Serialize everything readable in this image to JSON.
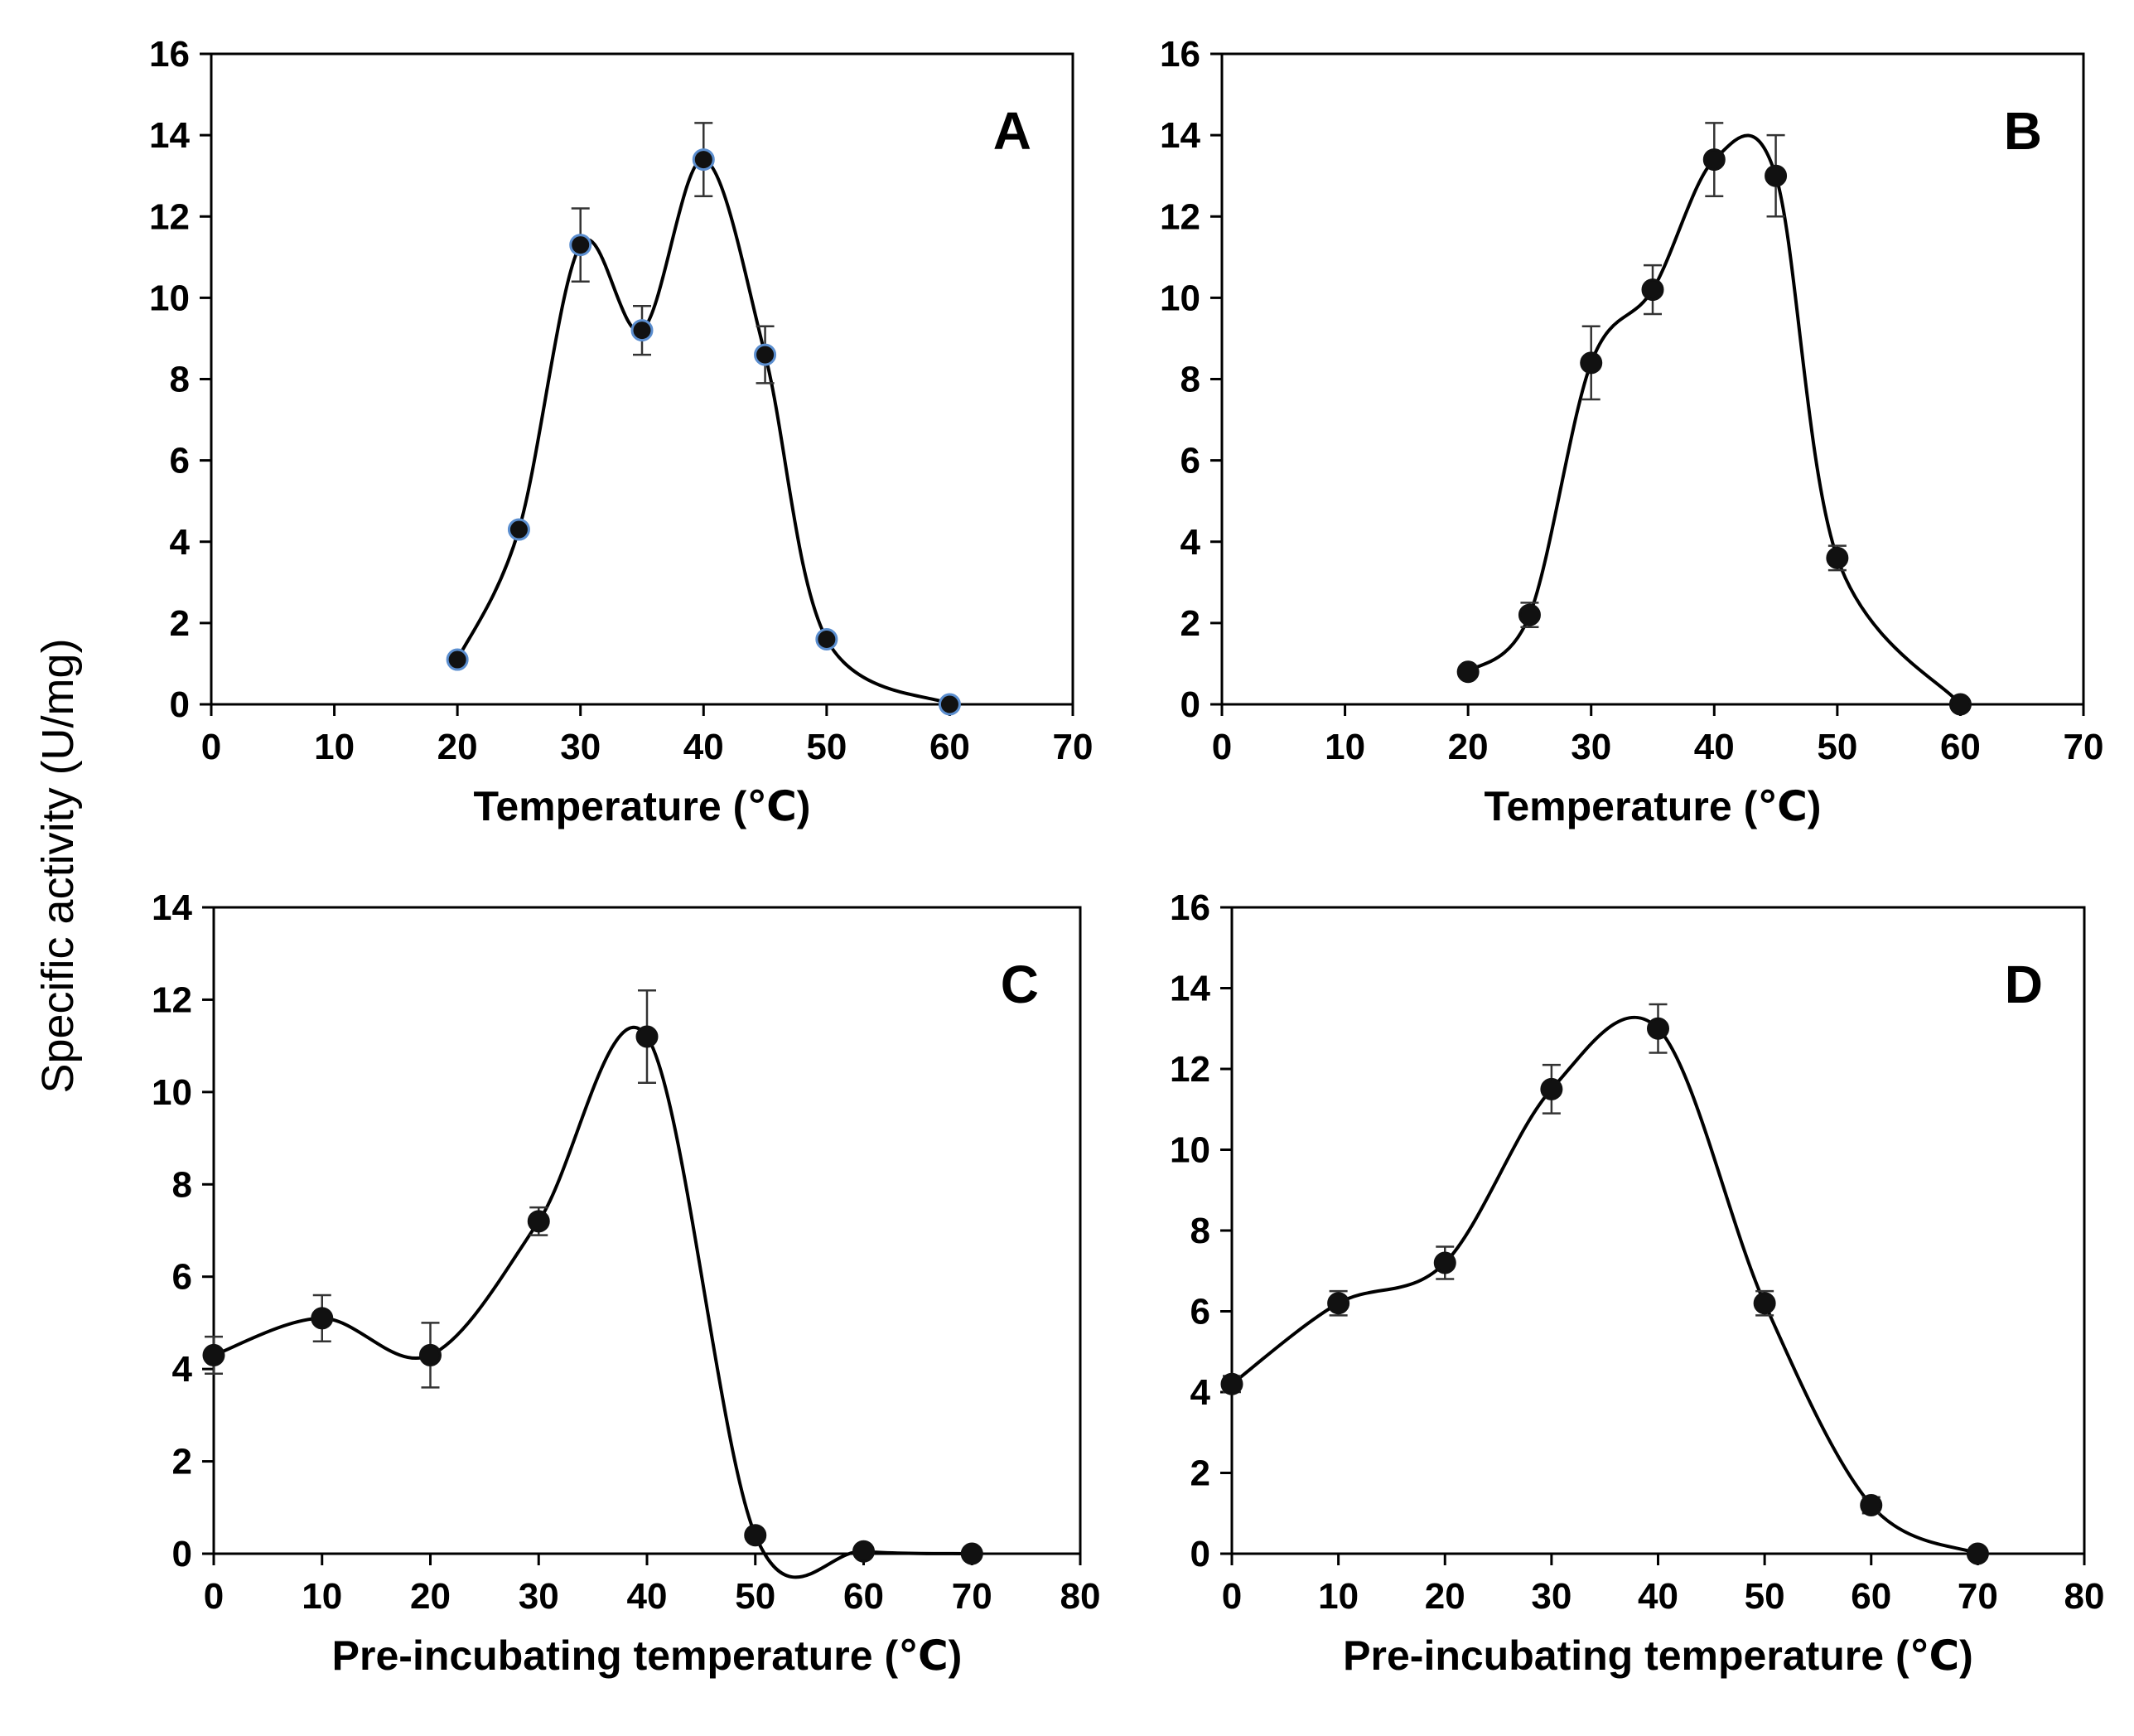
{
  "figure": {
    "shared_ylabel": "Specific activity (U/mg)"
  },
  "chart_data": [
    {
      "panel": "A",
      "type": "line",
      "xlabel": "Temperature (℃)",
      "ylabel": "Specific activity (U/mg)",
      "xlim": [
        0,
        70
      ],
      "ylim": [
        0,
        16
      ],
      "xticks": [
        0,
        10,
        20,
        30,
        40,
        50,
        60,
        70
      ],
      "yticks": [
        0,
        2,
        4,
        6,
        8,
        10,
        12,
        14,
        16
      ],
      "marker_fill": "#111111",
      "marker_edge": "#5b8ecf",
      "x": [
        20,
        25,
        30,
        35,
        40,
        45,
        50,
        60
      ],
      "y": [
        1.1,
        4.3,
        11.3,
        9.2,
        13.4,
        8.6,
        1.6,
        0.0
      ],
      "error": [
        0,
        0,
        0.9,
        0.6,
        0.9,
        0.7,
        0,
        0
      ]
    },
    {
      "panel": "B",
      "type": "line",
      "xlabel": "Temperature (℃)",
      "ylabel": "Specific activity (U/mg)",
      "xlim": [
        0,
        70
      ],
      "ylim": [
        0,
        16
      ],
      "xticks": [
        0,
        10,
        20,
        30,
        40,
        50,
        60,
        70
      ],
      "yticks": [
        0,
        2,
        4,
        6,
        8,
        10,
        12,
        14,
        16
      ],
      "marker_fill": "#111111",
      "marker_edge": "#111111",
      "x": [
        20,
        25,
        30,
        35,
        40,
        45,
        50,
        60
      ],
      "y": [
        0.8,
        2.2,
        8.4,
        10.2,
        13.4,
        13.0,
        3.6,
        0.0
      ],
      "error": [
        0,
        0.3,
        0.9,
        0.6,
        0.9,
        1.0,
        0.3,
        0
      ]
    },
    {
      "panel": "C",
      "type": "line",
      "xlabel": "Pre-incubating temperature (℃)",
      "ylabel": "Specific activity (U/mg)",
      "xlim": [
        0,
        80
      ],
      "ylim": [
        0,
        14
      ],
      "xticks": [
        0,
        10,
        20,
        30,
        40,
        50,
        60,
        70,
        80
      ],
      "yticks": [
        0,
        2,
        4,
        6,
        8,
        10,
        12,
        14
      ],
      "marker_fill": "#111111",
      "marker_edge": "#111111",
      "x": [
        0,
        10,
        20,
        30,
        40,
        50,
        60,
        70
      ],
      "y": [
        4.3,
        5.1,
        4.3,
        7.2,
        11.2,
        0.4,
        0.05,
        0.0
      ],
      "error": [
        0.4,
        0.5,
        0.7,
        0.3,
        1.0,
        0,
        0,
        0
      ]
    },
    {
      "panel": "D",
      "type": "line",
      "xlabel": "Pre-incubating temperature (℃)",
      "ylabel": "Specific activity (U/mg)",
      "xlim": [
        0,
        80
      ],
      "ylim": [
        0,
        16
      ],
      "xticks": [
        0,
        10,
        20,
        30,
        40,
        50,
        60,
        70,
        80
      ],
      "yticks": [
        0,
        2,
        4,
        6,
        8,
        10,
        12,
        14,
        16
      ],
      "marker_fill": "#111111",
      "marker_edge": "#111111",
      "x": [
        0,
        10,
        20,
        30,
        40,
        50,
        60,
        70
      ],
      "y": [
        4.2,
        6.2,
        7.2,
        11.5,
        13.0,
        6.2,
        1.2,
        0.0
      ],
      "error": [
        0.2,
        0.3,
        0.4,
        0.6,
        0.6,
        0.3,
        0.2,
        0
      ]
    }
  ]
}
